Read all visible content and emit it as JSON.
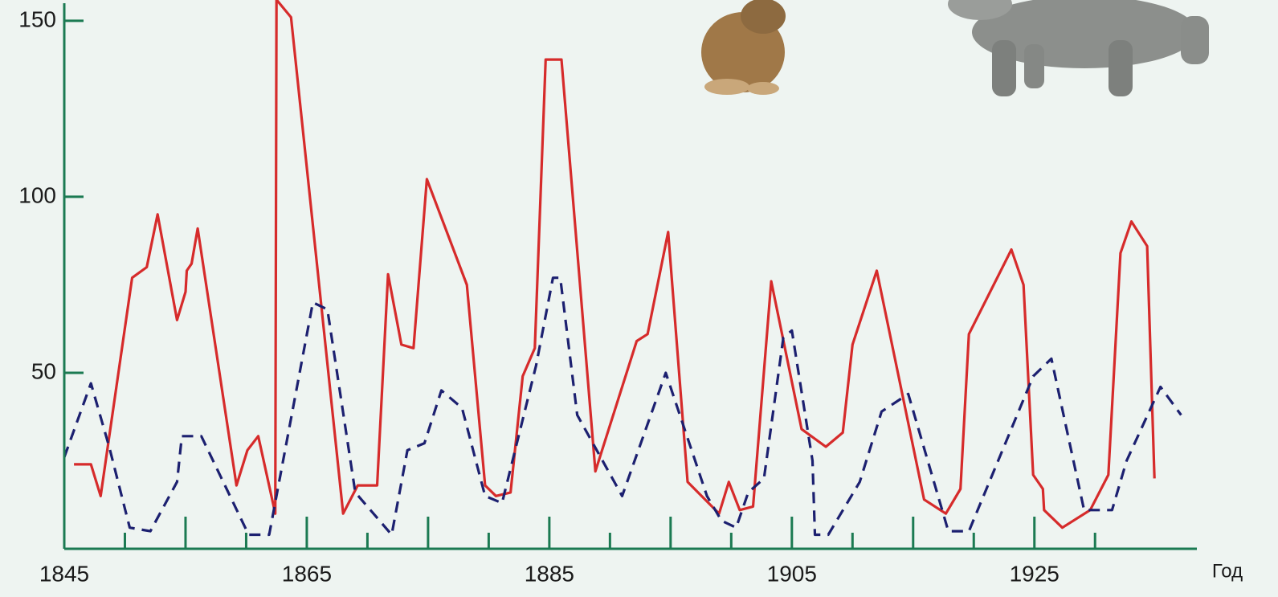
{
  "chart_data": {
    "type": "line",
    "x_label": "Год",
    "xlim": [
      1845,
      1938
    ],
    "xticks": [
      1845,
      1865,
      1885,
      1905,
      1925
    ],
    "xminorticks": [
      1850,
      1855,
      1860,
      1870,
      1875,
      1880,
      1890,
      1895,
      1900,
      1910,
      1915,
      1920,
      1930
    ],
    "ylim": [
      0,
      155
    ],
    "yticks": [
      50,
      100,
      150
    ],
    "axis_color": "#1b7a52",
    "series": [
      {
        "color": "#d62b2b",
        "dashed": false,
        "x": [
          1845.8,
          1847.2,
          1848,
          1850.6,
          1851.8,
          1852.7,
          1854.3,
          1855,
          1855.1,
          1855.5,
          1856,
          1859.2,
          1860.1,
          1861,
          1862.4,
          1862.5,
          1863.7,
          1868,
          1869.2,
          1870.8,
          1871.7,
          1872.8,
          1873.8,
          1874.9,
          1878.2,
          1879.7,
          1880.6,
          1881.8,
          1882.8,
          1883.8,
          1884.7,
          1886,
          1888.8,
          1892.2,
          1893.1,
          1894.8,
          1896.4,
          1899,
          1899.8,
          1900.7,
          1901.8,
          1903.3,
          1905.8,
          1907.8,
          1909.2,
          1910,
          1912,
          1915.9,
          1917.7,
          1918.9,
          1919.6,
          1923.1,
          1924.1,
          1924.9,
          1925.7,
          1925.8,
          1927.3,
          1929.6,
          1931.1,
          1932.1,
          1933,
          1934.3,
          1934.9
        ],
        "values": [
          24,
          24,
          15,
          77,
          80,
          95,
          65,
          73,
          79,
          81,
          91,
          18,
          28,
          32,
          10,
          156,
          151,
          10,
          18,
          18,
          78,
          58,
          57,
          105,
          75,
          18,
          15,
          16,
          49,
          57,
          139,
          139,
          22,
          59,
          61,
          90,
          19,
          10,
          19,
          11,
          12,
          76,
          34,
          29,
          33,
          58,
          79,
          14,
          10,
          17,
          61,
          85,
          75,
          21,
          17,
          11,
          6,
          11,
          21,
          84,
          93,
          86,
          20
        ]
      },
      {
        "color": "#1c2070",
        "dashed": true,
        "x": [
          1845,
          1847.2,
          1848.7,
          1850.4,
          1852.1,
          1854.3,
          1854.7,
          1856.3,
          1860.2,
          1861.9,
          1865.5,
          1866.7,
          1869,
          1872,
          1873.3,
          1874.7,
          1876.1,
          1877.8,
          1879.7,
          1881.1,
          1883.9,
          1885.3,
          1885.9,
          1887.3,
          1891,
          1894.6,
          1898,
          1899.2,
          1900.4,
          1901.4,
          1902.7,
          1904.3,
          1905,
          1906.7,
          1906.9,
          1908,
          1910.6,
          1912.4,
          1914.6,
          1917.9,
          1919.6,
          1924.9,
          1926.4,
          1929.1,
          1931.4,
          1932.6,
          1935.4,
          1937.1
        ],
        "values": [
          26,
          47,
          29,
          6,
          5,
          19,
          32,
          32,
          4,
          4,
          70,
          68,
          16,
          4,
          28,
          30,
          45,
          40,
          15,
          13,
          52,
          77,
          77,
          38,
          15,
          50,
          15,
          8,
          6,
          16,
          20,
          60,
          62,
          25,
          4,
          4,
          19,
          39,
          44,
          5,
          5,
          49,
          54,
          11,
          11,
          25,
          46,
          38
        ]
      }
    ]
  }
}
